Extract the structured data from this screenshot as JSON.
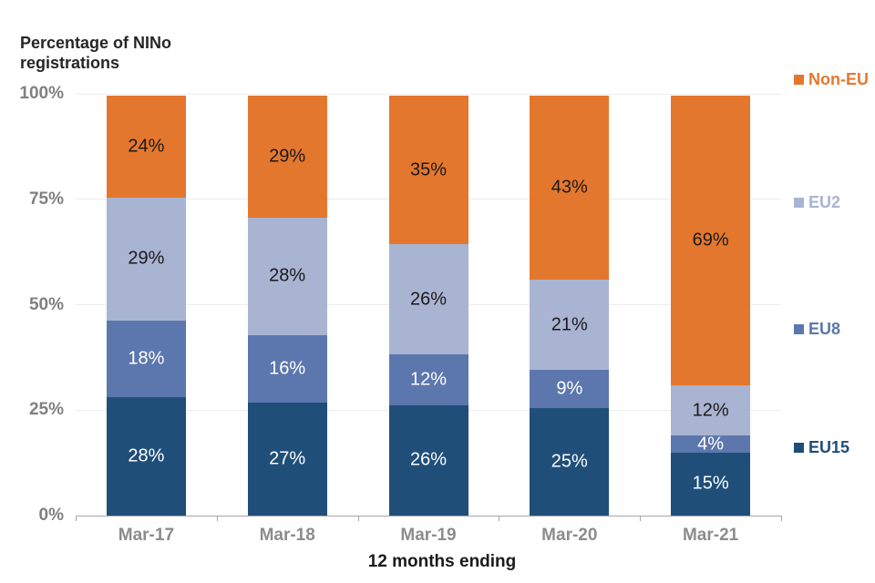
{
  "title_lines": [
    "Percentage of NINo",
    "registrations"
  ],
  "chart_data": {
    "type": "bar",
    "stacked": true,
    "percent_stacked": true,
    "title": "Percentage of NINo registrations",
    "xlabel": "12 months ending",
    "ylabel": "Percentage of NINo registrations",
    "categories": [
      "Mar-17",
      "Mar-18",
      "Mar-19",
      "Mar-20",
      "Mar-21"
    ],
    "series": [
      {
        "name": "EU15",
        "color": "#1f4e79",
        "label_color": "#ffffff",
        "values": [
          28,
          27,
          26,
          25,
          15
        ]
      },
      {
        "name": "EU8",
        "color": "#5c77ad",
        "label_color": "#ffffff",
        "values": [
          18,
          16,
          12,
          9,
          4
        ]
      },
      {
        "name": "EU2",
        "color": "#a9b4d2",
        "label_color": "#1a1a1a",
        "values": [
          29,
          28,
          26,
          21,
          12
        ]
      },
      {
        "name": "Non-EU",
        "color": "#e4772e",
        "label_color": "#1a1a1a",
        "values": [
          24,
          29,
          35,
          43,
          69
        ]
      }
    ],
    "value_suffix": "%",
    "ylim": [
      0,
      100
    ],
    "y_ticks": [
      {
        "label": "100%",
        "value": 100
      },
      {
        "label": "75%",
        "value": 75
      },
      {
        "label": "50%",
        "value": 50
      },
      {
        "label": "25%",
        "value": 25
      },
      {
        "label": "0%",
        "value": 0
      }
    ],
    "grid": "horizontal",
    "legend_position": "right",
    "legend_order": [
      "Non-EU",
      "EU2",
      "EU8",
      "EU15"
    ]
  }
}
